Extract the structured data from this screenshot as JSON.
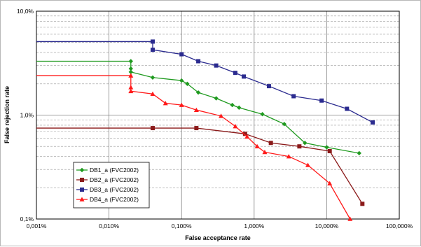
{
  "chart_data": {
    "type": "line",
    "xlabel": "False acceptance rate",
    "ylabel": "False rejection rate",
    "x_scale": "log",
    "y_scale": "log",
    "xlim": [
      0.001,
      100
    ],
    "ylim": [
      0.1,
      10
    ],
    "x_ticks": [
      {
        "value": 0.001,
        "label": "0,001%"
      },
      {
        "value": 0.01,
        "label": "0,010%"
      },
      {
        "value": 0.1,
        "label": "0,100%"
      },
      {
        "value": 1,
        "label": "1,000%"
      },
      {
        "value": 10,
        "label": "10,000%"
      },
      {
        "value": 100,
        "label": "100,000%"
      }
    ],
    "y_ticks": [
      {
        "value": 0.1,
        "label": "0,1%"
      },
      {
        "value": 1,
        "label": "1,0%"
      },
      {
        "value": 10,
        "label": "10,0%"
      }
    ],
    "grid": true,
    "legend_position": "bottom-left",
    "series": [
      {
        "name": "DB1_a (FVC2002)",
        "color": "#1f9a1f",
        "marker": "diamond",
        "step_start": [
          0.001,
          3.3
        ],
        "points": [
          [
            0.02,
            3.3
          ],
          [
            0.02,
            2.8
          ],
          [
            0.02,
            2.6
          ],
          [
            0.04,
            2.3
          ],
          [
            0.1,
            2.15
          ],
          [
            0.12,
            2.0
          ],
          [
            0.17,
            1.65
          ],
          [
            0.3,
            1.45
          ],
          [
            0.5,
            1.25
          ],
          [
            0.62,
            1.18
          ],
          [
            1.3,
            1.02
          ],
          [
            2.6,
            0.82
          ],
          [
            5,
            0.54
          ],
          [
            10,
            0.49
          ],
          [
            28,
            0.43
          ]
        ]
      },
      {
        "name": "DB2_a (FVC2002)",
        "color": "#8b1a1a",
        "marker": "square",
        "step_start": [
          0.001,
          0.75
        ],
        "points": [
          [
            0.04,
            0.75
          ],
          [
            0.16,
            0.75
          ],
          [
            0.75,
            0.66
          ],
          [
            1.7,
            0.54
          ],
          [
            4.2,
            0.5
          ],
          [
            11,
            0.45
          ],
          [
            31,
            0.14
          ]
        ]
      },
      {
        "name": "DB3_a (FVC2002)",
        "color": "#2b2b8f",
        "marker": "square",
        "step_start": [
          0.001,
          5.1
        ],
        "points": [
          [
            0.04,
            5.1
          ],
          [
            0.04,
            4.25
          ],
          [
            0.1,
            3.85
          ],
          [
            0.17,
            3.3
          ],
          [
            0.3,
            3.0
          ],
          [
            0.55,
            2.55
          ],
          [
            0.72,
            2.35
          ],
          [
            1.6,
            1.9
          ],
          [
            3.5,
            1.52
          ],
          [
            8.5,
            1.38
          ],
          [
            19,
            1.15
          ],
          [
            43,
            0.85
          ]
        ]
      },
      {
        "name": "DB4_a (FVC2002)",
        "color": "#ff1a1a",
        "marker": "triangle",
        "step_start": [
          0.001,
          2.4
        ],
        "points": [
          [
            0.02,
            2.4
          ],
          [
            0.02,
            1.85
          ],
          [
            0.02,
            1.7
          ],
          [
            0.04,
            1.6
          ],
          [
            0.06,
            1.3
          ],
          [
            0.1,
            1.25
          ],
          [
            0.16,
            1.12
          ],
          [
            0.35,
            0.98
          ],
          [
            0.55,
            0.78
          ],
          [
            0.8,
            0.62
          ],
          [
            1.1,
            0.5
          ],
          [
            1.4,
            0.44
          ],
          [
            3,
            0.4
          ],
          [
            5.5,
            0.33
          ],
          [
            11,
            0.22
          ],
          [
            21,
            0.1
          ]
        ]
      }
    ]
  }
}
